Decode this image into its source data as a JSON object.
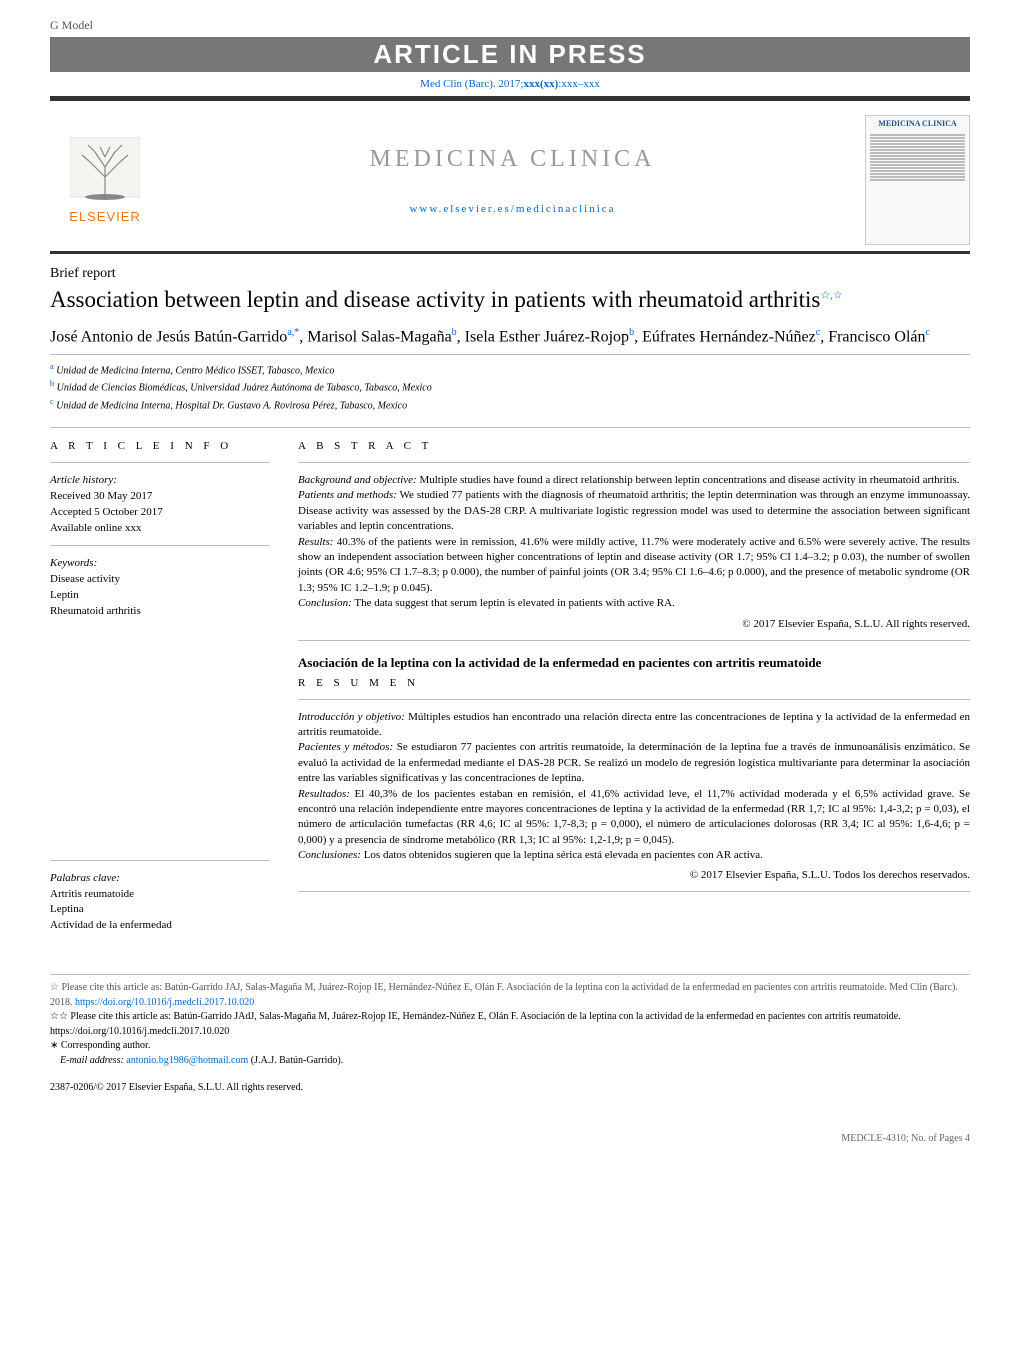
{
  "header": {
    "gmodel": "G Model",
    "banner": "ARTICLE IN PRESS",
    "citation_prefix": "Med Clin (Barc). 2017;",
    "citation_bold": "xxx(xx)",
    "citation_suffix": ":xxx–xxx",
    "journal_title": "MEDICINA CLINICA",
    "journal_url": "www.elsevier.es/medicinaclinica",
    "elsevier": "ELSEVIER",
    "cover_brand": "MEDICINA CLINICA"
  },
  "article": {
    "type": "Brief report",
    "title": "Association between leptin and disease activity in patients with rheumatoid arthritis",
    "title_marks": "☆,☆",
    "authors_html": "José Antonio de Jesús Batún-Garrido|a,*|,  Marisol Salas-Magaña|b|,  Isela Esther Juárez-Rojop|b|, Eúfrates Hernández-Núñez|c|,  Francisco Olán|c|",
    "affiliations": [
      {
        "sup": "a",
        "text": "Unidad de Medicina Interna, Centro Médico ISSET, Tabasco, Mexico"
      },
      {
        "sup": "b",
        "text": "Unidad de Ciencias Biomédicas, Universidad Juárez Autónoma de Tabasco, Tabasco, Mexico"
      },
      {
        "sup": "c",
        "text": "Unidad de Medicina Interna, Hospital Dr. Gustavo A. Rovirosa Pérez, Tabasco, Mexico"
      }
    ]
  },
  "info": {
    "heading": "a r t i c l e   i n f o",
    "history_label": "Article history:",
    "received": "Received 30 May 2017",
    "accepted": "Accepted 5 October 2017",
    "online": "Available online xxx",
    "keywords_label": "Keywords:",
    "keywords": [
      "Disease activity",
      "Leptin",
      "Rheumatoid arthritis"
    ],
    "palabras_label": "Palabras clave:",
    "palabras": [
      "Artritis reumatoide",
      "Leptina",
      "Actividad de la enfermedad"
    ]
  },
  "abstract": {
    "heading": "a b s t r a c t",
    "bg_label": "Background and objective:",
    "bg_text": "Multiple studies have found a direct relationship between leptin concentrations and disease activity in rheumatoid arthritis.",
    "pm_label": "Patients and methods:",
    "pm_text": "We studied 77 patients with the diagnosis of rheumatoid arthritis; the leptin determination was through an enzyme immunoassay. Disease activity was assessed by the DAS-28 CRP. A multivariate logistic regression model was used to determine the association between significant variables and leptin concentrations.",
    "res_label": "Results:",
    "res_text": "40.3% of the patients were in remission, 41.6% were mildly active, 11.7% were moderately active and 6.5% were severely active. The results show an independent association between higher concentrations of leptin and disease activity (OR 1.7; 95% CI 1.4–3.2; p 0.03), the number of swollen joints (OR 4.6; 95% CI 1.7–8.3; p 0.000), the number of painful joints (OR 3.4; 95% CI 1.6–4.6; p 0.000), and the presence of metabolic syndrome (OR 1.3; 95% IC 1.2–1.9; p 0.045).",
    "con_label": "Conclusion:",
    "con_text": "The data suggest that serum leptin is elevated in patients with active RA.",
    "copyright": "© 2017 Elsevier España, S.L.U. All rights reserved."
  },
  "resumen": {
    "alt_title": "Asociación de la leptina con la actividad de la enfermedad en pacientes con artritis reumatoide",
    "heading": "r e s u m e n",
    "intro_label": "Introducción y objetivo:",
    "intro_text": "Múltiples estudios han encontrado una relación directa entre las concentraciones de leptina y la actividad de la enfermedad en artritis reumatoide.",
    "pm_label": "Pacientes y métodos:",
    "pm_text": "Se estudiaron 77 pacientes con artritis reumatoide, la determinación de la leptina fue a través de inmunoanálisis enzimático. Se evaluó la actividad de la enfermedad mediante el DAS-28 PCR. Se realizó un modelo de regresión logística multivariante para determinar la asociación entre las variables significativas y las concentraciones de leptina.",
    "res_label": "Resultados:",
    "res_text": "El 40,3% de los pacientes estaban en remisión, el 41,6% actividad leve, el 11,7% actividad moderada y el 6,5% actividad grave. Se encontró una relación independiente entre mayores concentraciones de leptina y la actividad de la enfermedad (RR 1,7; IC al 95%: 1,4-3,2; p = 0,03), el número de articulación tumefactas (RR 4,6; IC al 95%: 1,7-8,3; p = 0,000), el número de articulaciones dolorosas (RR 3,4; IC al 95%: 1,6-4,6; p = 0,000) y a presencia de síndrome metabólico (RR 1,3; IC al 95%: 1,2-1,9; p = 0,045).",
    "con_label": "Conclusiones:",
    "con_text": "Los datos obtenidos sugieren que la leptina sérica está elevada en pacientes con AR activa.",
    "copyright": "© 2017 Elsevier España, S.L.U. Todos los derechos reservados."
  },
  "footnotes": {
    "cite1_pre": "☆  Please cite this article as: Batún-Garrido JAJ, Salas-Magaña M, Juárez-Rojop IE, Hernández-Núñez E, Olán F. Asociación de la leptina con la actividad de la enfermedad en pacientes con artritis reumatoide. Med Clin (Barc). 2018. ",
    "cite1_link": "https://doi.org/10.1016/j.medcli.2017.10.020",
    "cite2": "☆☆  Please cite this article as: Batún-Garrido JAdJ, Salas-Magaña M, Juárez-Rojop IE, Hernández-Núñez E, Olán F. Asociación de la leptina con la actividad de la enfermedad en pacientes con artritis reumatoide. https://doi.org/10.1016/j.medcli.2017.10.020",
    "corr": "∗  Corresponding author.",
    "email_label": "E-mail address:",
    "email": "antonio.bg1986@hotmail.com",
    "email_suffix": "(J.A.J. Batún-Garrido).",
    "issn": "2387-0206/© 2017 Elsevier España, S.L.U. All rights reserved.",
    "footer_id": "MEDCLE-4310;   No. of Pages 4"
  },
  "colors": {
    "banner_bg": "#777777",
    "link": "#0066cc",
    "elsevier": "#e67817",
    "journal_gray": "#999999",
    "rule": "#333333",
    "rule_light": "#bbbbbb"
  }
}
